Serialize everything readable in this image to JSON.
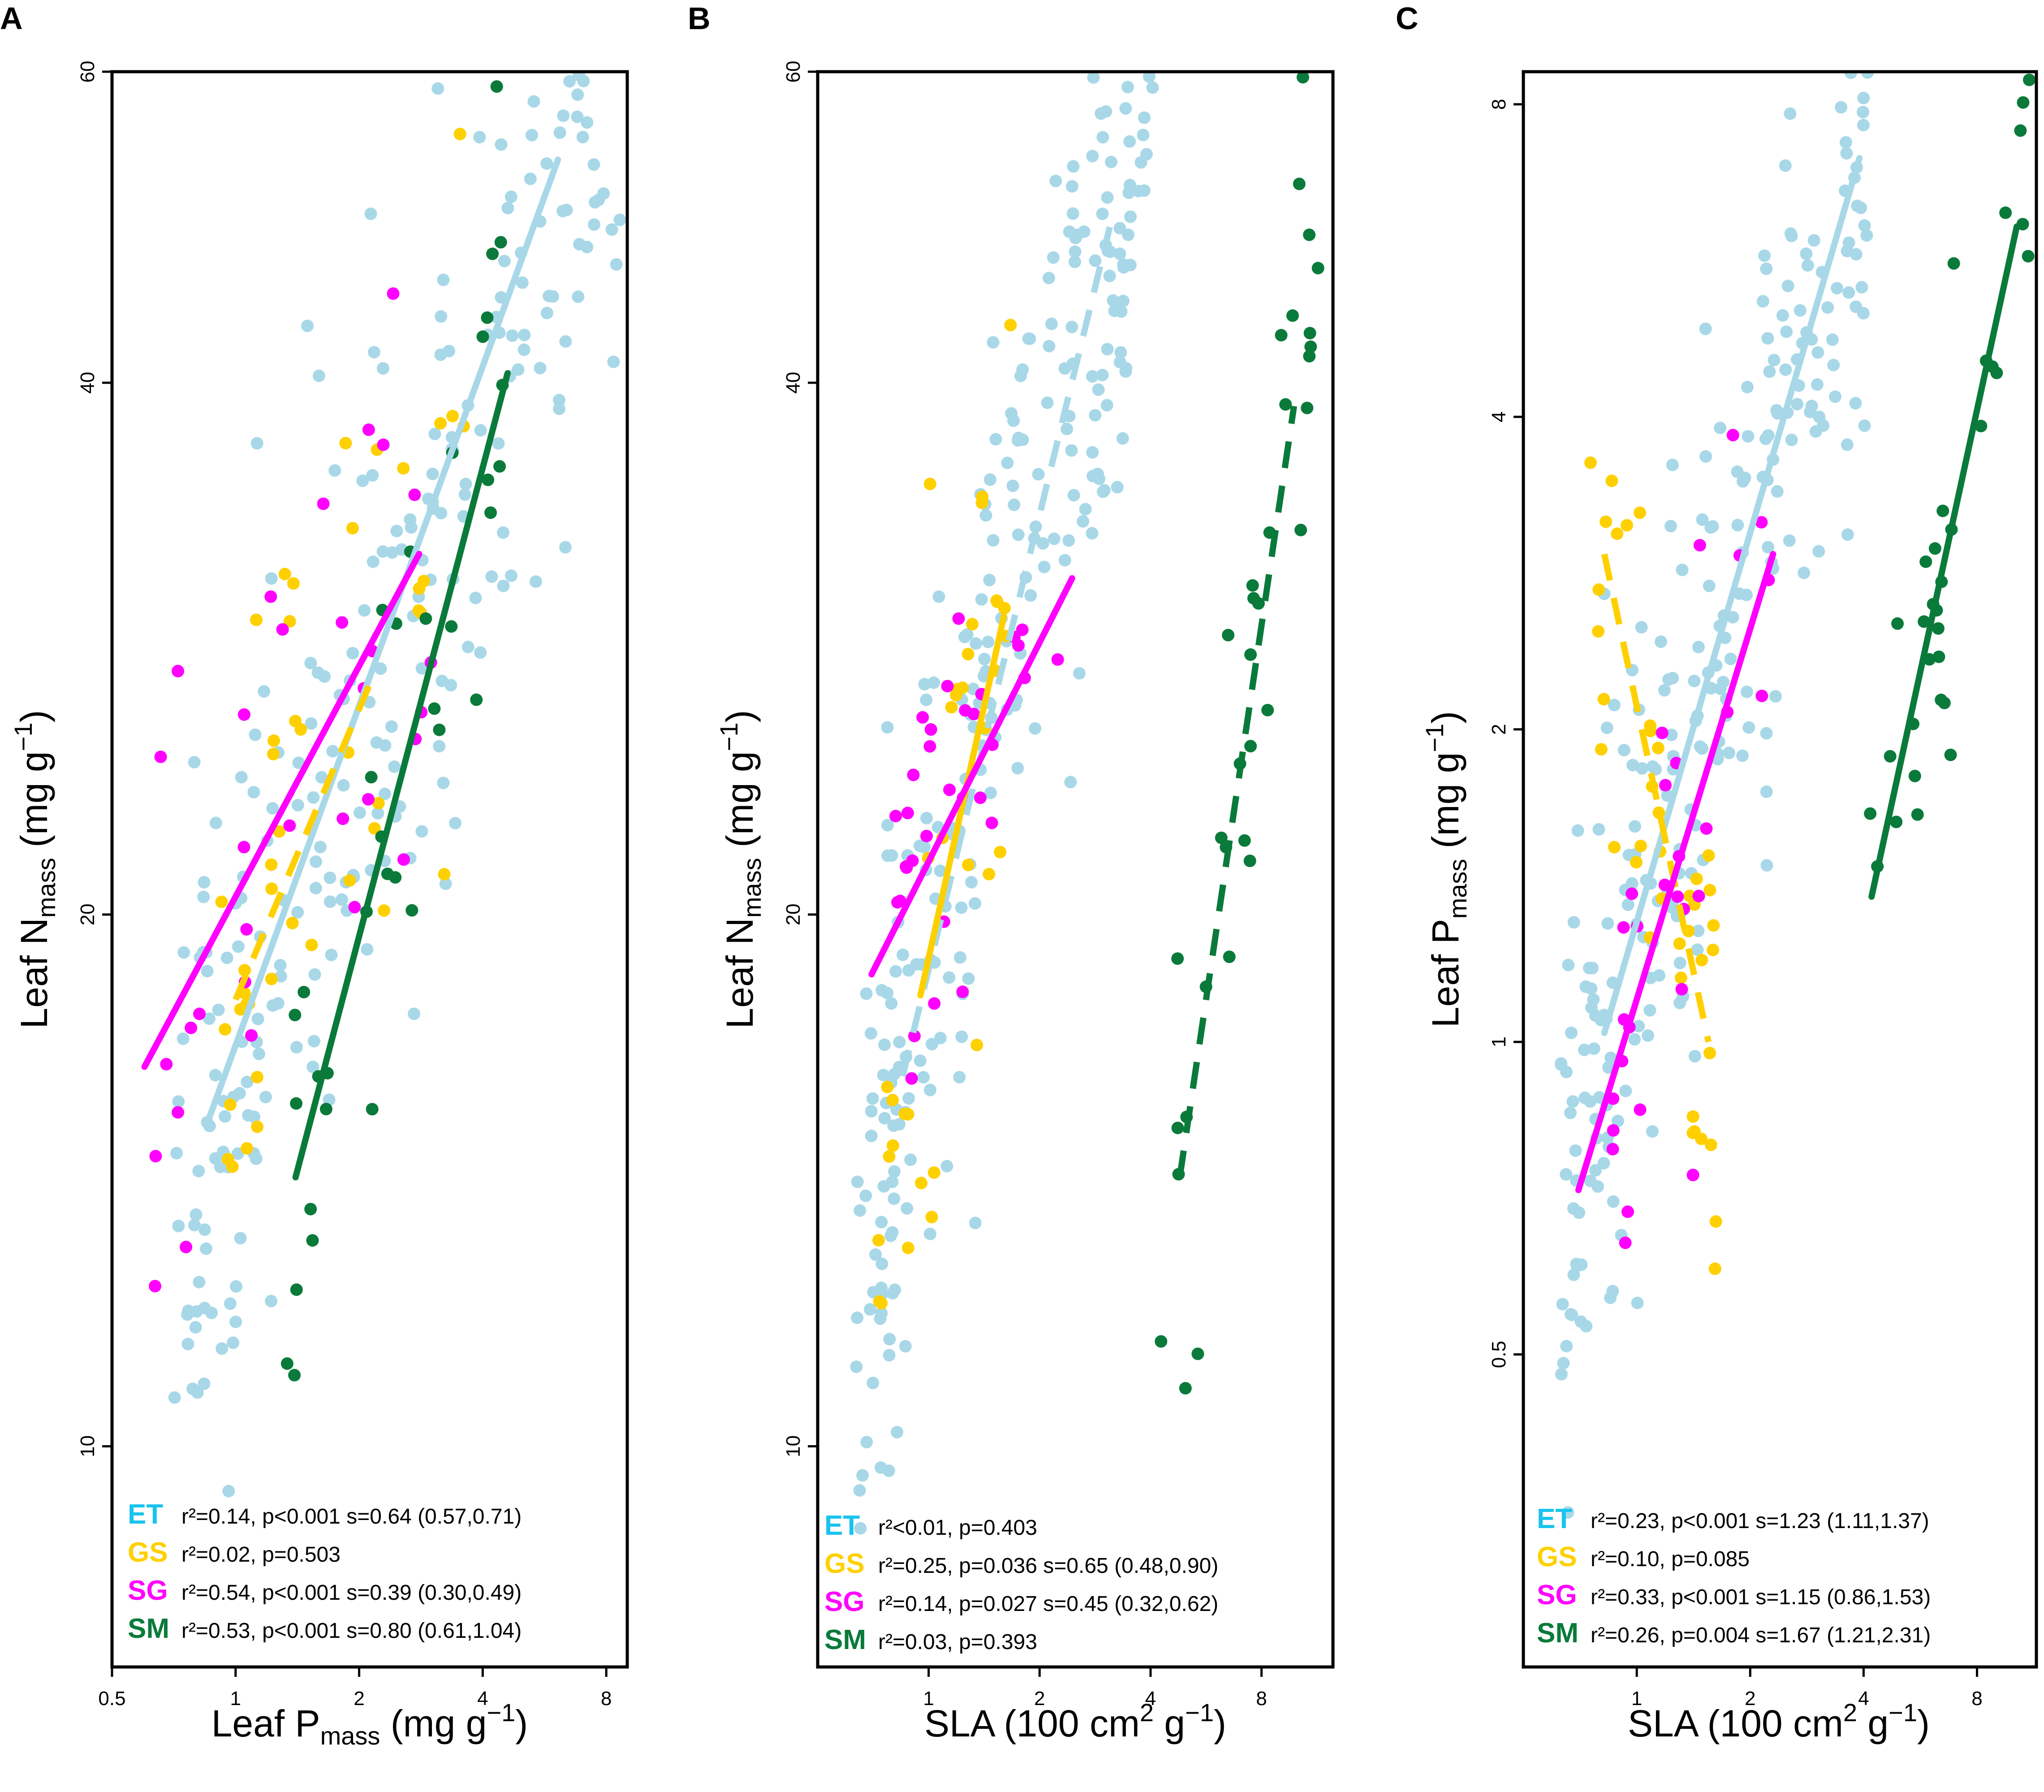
{
  "colors": {
    "ET": "#a8d8e8",
    "GS": "#ffd000",
    "SG": "#ff00ff",
    "SM": "#0a7a3a"
  },
  "legend_colors": {
    "ET": "#19c3ee",
    "GS": "#ffd000",
    "SG": "#ff00ff",
    "SM": "#0a7a3a"
  },
  "chart_data": [
    {
      "type": "scatter",
      "panel": "A",
      "xlabel": {
        "main": "Leaf P",
        "sub": "mass",
        "units_a": " (mg g",
        "sup": "−1",
        "units_b": ")"
      },
      "ylabel": {
        "main": "Leaf N",
        "sub": "mass",
        "units_a": " (mg g",
        "sup": "−1",
        "units_b": ")"
      },
      "xscale": "log",
      "yscale": "log",
      "xlim": [
        0.5,
        9.0
      ],
      "ylim": [
        7.5,
        60
      ],
      "xticks": [
        0.5,
        1,
        2,
        4,
        8
      ],
      "xtick_labels": [
        "0.5",
        "1",
        "2",
        "4",
        "8"
      ],
      "yticks": [
        10,
        20,
        40,
        60
      ],
      "ytick_labels": [
        "10",
        "20",
        "40",
        "60"
      ],
      "point_spread": 0.11,
      "series": [
        {
          "name": "ET",
          "fit": {
            "slope": 0.64,
            "x": [
              0.85,
              6.1
            ],
            "dashed": false
          },
          "n_points": 260,
          "xrange": [
            0.7,
            8.8
          ],
          "seed": 11
        },
        {
          "name": "GS",
          "fit": {
            "slope": 0.65,
            "x": [
              1.0,
              2.15
            ],
            "dashed": true
          },
          "n_points": 45,
          "xrange": [
            0.9,
            3.8
          ],
          "seed": 23
        },
        {
          "name": "SG",
          "fit": {
            "slope": 0.39,
            "x": [
              0.6,
              2.8
            ],
            "dashed": false
          },
          "n_points": 32,
          "xrange": [
            0.62,
            3.2
          ],
          "seed": 37
        },
        {
          "name": "SM",
          "fit": {
            "slope": 0.8,
            "x": [
              1.4,
              4.6
            ],
            "dashed": false
          },
          "n_points": 36,
          "xrange": [
            1.3,
            4.6
          ],
          "seed": 41
        }
      ],
      "fit_y": {
        "ET": [
          15.2,
          53.5
        ],
        "GS": [
          17.9,
          27.2
        ],
        "SG": [
          16.4,
          32.0
        ],
        "SM": [
          14.2,
          40.5
        ]
      },
      "legend": [
        {
          "code": "ET",
          "stats": "r²=0.14, p<0.001   s=0.64 (0.57,0.71)"
        },
        {
          "code": "GS",
          "stats": "r²=0.02, p=0.503"
        },
        {
          "code": "SG",
          "stats": "r²=0.54, p<0.001   s=0.39 (0.30,0.49)"
        },
        {
          "code": "SM",
          "stats": "r²=0.53, p<0.001   s=0.80 (0.61,1.04)"
        }
      ]
    },
    {
      "type": "scatter",
      "panel": "B",
      "xlabel": {
        "main": "SLA",
        "sub": "",
        "units_a": "  (100 cm",
        "sup": "2",
        "units_b": " g",
        "sup2": "−1",
        "units_c": ")"
      },
      "ylabel": {
        "main": "Leaf N",
        "sub": "mass",
        "units_a": " (mg g",
        "sup": "−1",
        "units_b": ")"
      },
      "xscale": "log",
      "yscale": "log",
      "xlim": [
        0.5,
        12.5
      ],
      "ylim": [
        7.5,
        60
      ],
      "xticks": [
        1,
        2,
        4,
        8
      ],
      "xtick_labels": [
        "1",
        "2",
        "4",
        "8"
      ],
      "yticks": [
        10,
        20,
        40,
        60
      ],
      "ytick_labels": [
        "10",
        "20",
        "40",
        "60"
      ],
      "point_spread": 0.1,
      "series": [
        {
          "name": "ET",
          "fit": {
            "x": [
              0.85,
              3.1
            ],
            "dashed": true
          },
          "n_points": 260,
          "xrange": [
            0.62,
            4.2
          ],
          "seed": 53
        },
        {
          "name": "GS",
          "fit": {
            "x": [
              0.95,
              1.6
            ],
            "dashed": false
          },
          "n_points": 35,
          "xrange": [
            0.72,
            1.7
          ],
          "seed": 59
        },
        {
          "name": "SG",
          "fit": {
            "x": [
              0.7,
              2.45
            ],
            "dashed": false
          },
          "n_points": 32,
          "xrange": [
            0.8,
            2.3
          ],
          "seed": 61
        },
        {
          "name": "SM",
          "fit": {
            "x": [
              4.8,
              9.8
            ],
            "dashed": true
          },
          "n_points": 34,
          "xrange": [
            4.0,
            11.5
          ],
          "seed": 67
        }
      ],
      "fit_y": {
        "ET": [
          16.2,
          49.0
        ],
        "GS": [
          18.0,
          29.5
        ],
        "SG": [
          18.5,
          31.0
        ],
        "SM": [
          14.2,
          38.8
        ]
      },
      "legend": [
        {
          "code": "ET",
          "stats": "r²<0.01, p=0.403"
        },
        {
          "code": "GS",
          "stats": "r²=0.25, p=0.036   s=0.65 (0.48,0.90)"
        },
        {
          "code": "SG",
          "stats": "r²=0.14, p=0.027   s=0.45 (0.32,0.62)"
        },
        {
          "code": "SM",
          "stats": "r²=0.03, p=0.393"
        }
      ]
    },
    {
      "type": "scatter",
      "panel": "C",
      "xlabel": {
        "main": "SLA",
        "sub": "",
        "units_a": "  (100 cm",
        "sup": "2",
        "units_b": " g",
        "sup2": "−1",
        "units_c": ")"
      },
      "ylabel": {
        "main": "Leaf P",
        "sub": "mass",
        "units_a": " (mg g",
        "sup": "−1",
        "units_b": ")"
      },
      "xscale": "log",
      "yscale": "log",
      "xlim": [
        0.5,
        11.5
      ],
      "ylim": [
        0.25,
        8.6
      ],
      "xticks": [
        1,
        2,
        4,
        8
      ],
      "xtick_labels": [
        "1",
        "2",
        "4",
        "8"
      ],
      "yticks": [
        0.5,
        1,
        2,
        4,
        8
      ],
      "ytick_labels": [
        "0.5",
        "1",
        "2",
        "4",
        "8"
      ],
      "point_spread": 0.16,
      "series": [
        {
          "name": "ET",
          "fit": {
            "slope": 1.23,
            "x": [
              0.82,
              3.9
            ],
            "dashed": false
          },
          "n_points": 260,
          "xrange": [
            0.62,
            4.2
          ],
          "seed": 71
        },
        {
          "name": "GS",
          "fit": {
            "x": [
              0.82,
              1.55
            ],
            "dashed": true
          },
          "n_points": 40,
          "xrange": [
            0.75,
            1.65
          ],
          "seed": 73
        },
        {
          "name": "SG",
          "fit": {
            "slope": 1.15,
            "x": [
              0.7,
              2.3
            ],
            "dashed": false
          },
          "n_points": 30,
          "xrange": [
            0.85,
            2.3
          ],
          "seed": 79
        },
        {
          "name": "SM",
          "fit": {
            "slope": 1.67,
            "x": [
              4.2,
              10.2
            ],
            "dashed": false
          },
          "n_points": 34,
          "xrange": [
            4.1,
            11.2
          ],
          "seed": 83
        }
      ],
      "fit_y": {
        "ET": [
          1.02,
          7.1
        ],
        "GS": [
          2.95,
          1.0
        ],
        "SG": [
          0.72,
          2.95
        ],
        "SM": [
          1.38,
          6.1
        ]
      },
      "legend": [
        {
          "code": "ET",
          "stats": "r²=0.23, p<0.001   s=1.23 (1.11,1.37)"
        },
        {
          "code": "GS",
          "stats": "r²=0.10, p=0.085"
        },
        {
          "code": "SG",
          "stats": "r²=0.33, p<0.001   s=1.15 (0.86,1.53)"
        },
        {
          "code": "SM",
          "stats": "r²=0.26, p=0.004   s=1.67 (1.21,2.31)"
        }
      ]
    }
  ]
}
